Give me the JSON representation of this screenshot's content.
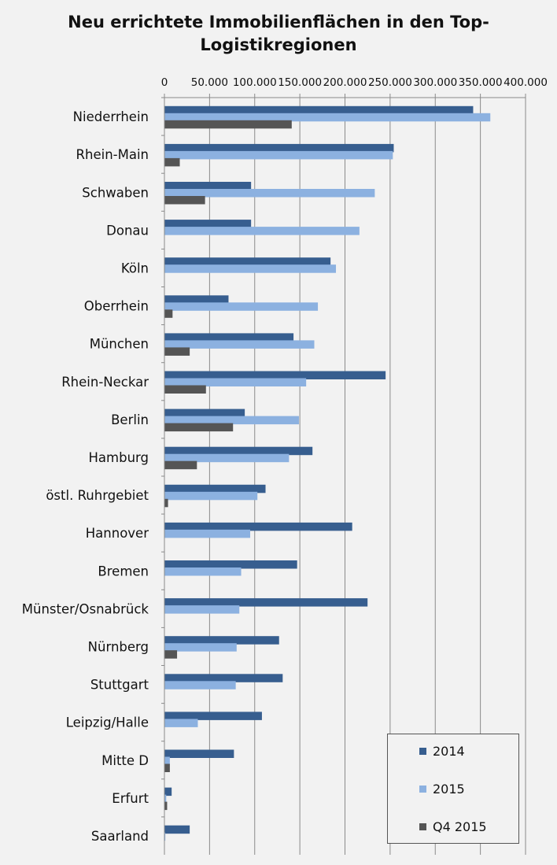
{
  "chart_data": {
    "type": "bar",
    "orientation": "horizontal",
    "title": "Neu errichtete Immobilienflächen in den Top-Logistikregionen",
    "title_lines": [
      "Neu errichtete Immobilienflächen in den Top-",
      "Logistikregionen"
    ],
    "xlim": [
      0,
      400000
    ],
    "x_ticks": [
      0,
      50000,
      100000,
      150000,
      200000,
      250000,
      300000,
      350000,
      400000
    ],
    "x_tick_labels": [
      "0",
      "50.000",
      "100.000",
      "150.000",
      "200.000",
      "250.000",
      "300.000",
      "350.000",
      "400.000"
    ],
    "x_axis_position": "top",
    "grid": true,
    "legend_position": "bottom-right",
    "categories": [
      "Niederrhein",
      "Rhein-Main",
      "Schwaben",
      "Donau",
      "Köln",
      "Oberrhein",
      "München",
      "Rhein-Neckar",
      "Berlin",
      "Hamburg",
      "östl. Ruhrgebiet",
      "Hannover",
      "Bremen",
      "Münster/Osnabrück",
      "Nürnberg",
      "Stuttgart",
      "Leipzig/Halle",
      "Mitte D",
      "Erfurt",
      "Saarland"
    ],
    "series": [
      {
        "name": "2014",
        "color": "#375e8f",
        "values": [
          342000,
          254000,
          96000,
          96000,
          184000,
          71000,
          143000,
          245000,
          89000,
          164000,
          112000,
          208000,
          147000,
          225000,
          127000,
          131000,
          108000,
          77000,
          8000,
          28000
        ]
      },
      {
        "name": "2015",
        "color": "#8cb1e0",
        "values": [
          361000,
          253000,
          233000,
          216000,
          190000,
          170000,
          166000,
          157000,
          149000,
          138000,
          103000,
          95000,
          85000,
          83000,
          80000,
          79000,
          37000,
          6000,
          2000,
          1000
        ]
      },
      {
        "name": "Q4 2015",
        "color": "#555555",
        "values": [
          141000,
          17000,
          45000,
          0,
          0,
          9000,
          28000,
          46000,
          76000,
          36000,
          4000,
          0,
          0,
          0,
          14000,
          0,
          0,
          6000,
          3000,
          0
        ]
      }
    ]
  }
}
